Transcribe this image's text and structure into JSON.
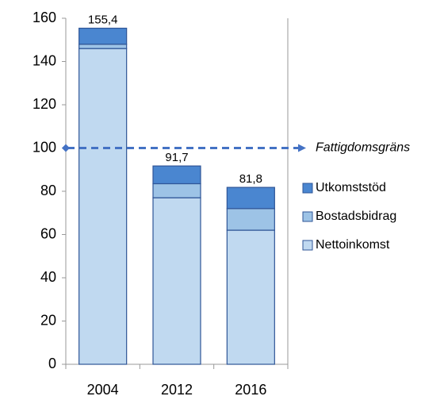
{
  "chart_data": {
    "type": "stacked_bar",
    "categories": [
      "2004",
      "2012",
      "2016"
    ],
    "series": [
      {
        "name": "Nettoinkomst",
        "color": "#c0d9f0",
        "values": [
          146,
          77,
          62
        ]
      },
      {
        "name": "Bostadsbidrag",
        "color": "#9dc3e6",
        "values": [
          2,
          6.5,
          10
        ]
      },
      {
        "name": "Utkomststöd",
        "color": "#4a86d0",
        "values": [
          7.4,
          8.2,
          9.8
        ]
      }
    ],
    "totals": [
      155.4,
      91.7,
      81.8
    ],
    "total_labels": [
      "155,4",
      "91,7",
      "81,8"
    ],
    "annotation": {
      "label": "Fattigdomsgräns",
      "value": 100
    },
    "ylim": [
      0,
      160
    ],
    "yticks": [
      0,
      20,
      40,
      60,
      80,
      100,
      120,
      140,
      160
    ],
    "legend": "right"
  }
}
